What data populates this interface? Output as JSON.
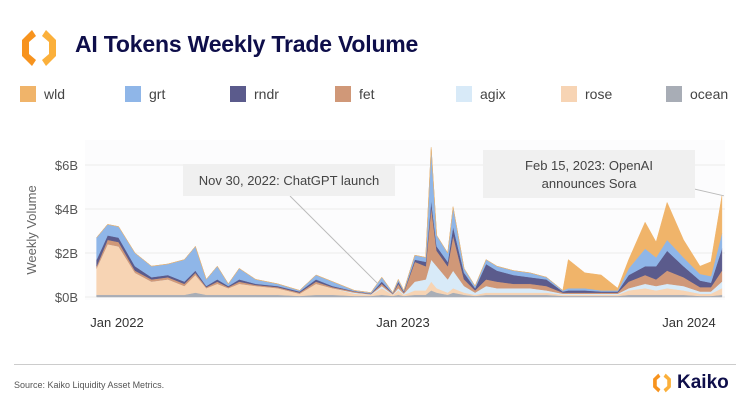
{
  "header": {
    "title": "AI Tokens Weekly Trade Volume",
    "logo_icon": "kaiko-logo-icon"
  },
  "footer": {
    "source": "Source: Kaiko Liquidity Asset Metrics.",
    "brand": "Kaiko"
  },
  "chart_data": {
    "type": "area",
    "stacked": true,
    "title": "AI Tokens Weekly Trade Volume",
    "ylabel": "Weekly Volume",
    "xlabel": "",
    "ylim": [
      0,
      7
    ],
    "yticks": [
      0,
      2,
      4,
      6
    ],
    "ytick_labels": [
      "$0B",
      "$2B",
      "$4B",
      "$6B"
    ],
    "xtick_dates": [
      "2022-01-01",
      "2023-01-01",
      "2024-01-01"
    ],
    "xtick_labels": [
      "Jan 2022",
      "Jan 2023",
      "Jan 2024"
    ],
    "grid": true,
    "legend_position": "top-left",
    "legend": [
      {
        "name": "wld",
        "color": "#f0b46a"
      },
      {
        "name": "grt",
        "color": "#8fb6e8"
      },
      {
        "name": "rndr",
        "color": "#5b5b8c"
      },
      {
        "name": "fet",
        "color": "#d09878"
      },
      {
        "name": "agix",
        "color": "#d8eaf8"
      },
      {
        "name": "rose",
        "color": "#f7d4b4"
      },
      {
        "name": "ocean",
        "color": "#a8adb6"
      }
    ],
    "stack_order_bottom_to_top": [
      "ocean",
      "rose",
      "agix",
      "fet",
      "rndr",
      "grt",
      "wld"
    ],
    "unit": "USD billions",
    "x": [
      "2021-12-06",
      "2021-12-20",
      "2022-01-03",
      "2022-01-24",
      "2022-02-14",
      "2022-03-07",
      "2022-03-28",
      "2022-04-11",
      "2022-04-25",
      "2022-05-09",
      "2022-05-23",
      "2022-06-06",
      "2022-06-27",
      "2022-07-25",
      "2022-08-22",
      "2022-09-12",
      "2022-10-03",
      "2022-10-31",
      "2022-11-21",
      "2022-12-05",
      "2022-12-19",
      "2022-12-26",
      "2023-01-02",
      "2023-01-16",
      "2023-01-30",
      "2023-02-06",
      "2023-02-13",
      "2023-02-27",
      "2023-03-06",
      "2023-03-20",
      "2023-04-03",
      "2023-04-17",
      "2023-05-01",
      "2023-05-22",
      "2023-06-12",
      "2023-07-03",
      "2023-07-24",
      "2023-07-31",
      "2023-08-21",
      "2023-09-11",
      "2023-10-02",
      "2023-10-16",
      "2023-11-06",
      "2023-11-20",
      "2023-12-04",
      "2023-12-25",
      "2024-01-15",
      "2024-01-29",
      "2024-02-12"
    ],
    "values_by_date": [
      [
        0.1,
        1.2,
        0,
        0.1,
        0.3,
        1.0,
        0
      ],
      [
        0.1,
        2.3,
        0,
        0.2,
        0.2,
        0.5,
        0
      ],
      [
        0.1,
        2.2,
        0,
        0.2,
        0.2,
        0.5,
        0
      ],
      [
        0.1,
        1.0,
        0,
        0.1,
        0.2,
        0.6,
        0
      ],
      [
        0.1,
        0.6,
        0,
        0.1,
        0.1,
        0.5,
        0
      ],
      [
        0.1,
        0.7,
        0,
        0.1,
        0.1,
        0.5,
        0
      ],
      [
        0.1,
        0.4,
        0,
        0.1,
        0.1,
        1.0,
        0
      ],
      [
        0.2,
        0.8,
        0,
        0.1,
        0.1,
        1.1,
        0
      ],
      [
        0.1,
        0.3,
        0,
        0.05,
        0.05,
        0.3,
        0
      ],
      [
        0.1,
        0.5,
        0,
        0.1,
        0.1,
        0.6,
        0
      ],
      [
        0.1,
        0.3,
        0,
        0.05,
        0.05,
        0.1,
        0
      ],
      [
        0.1,
        0.5,
        0,
        0.1,
        0.1,
        0.5,
        0
      ],
      [
        0.1,
        0.4,
        0,
        0.05,
        0.05,
        0.2,
        0
      ],
      [
        0.1,
        0.3,
        0,
        0.05,
        0.05,
        0.1,
        0
      ],
      [
        0.05,
        0.1,
        0,
        0.05,
        0.05,
        0.05,
        0
      ],
      [
        0.1,
        0.5,
        0,
        0.1,
        0.1,
        0.2,
        0
      ],
      [
        0.1,
        0.3,
        0,
        0.05,
        0.05,
        0.2,
        0
      ],
      [
        0.05,
        0.1,
        0.05,
        0.05,
        0.02,
        0.03,
        0
      ],
      [
        0.05,
        0.05,
        0.02,
        0.02,
        0.02,
        0.04,
        0
      ],
      [
        0.1,
        0.3,
        0.1,
        0.1,
        0.1,
        0.2,
        0
      ],
      [
        0.05,
        0.05,
        0.02,
        0.03,
        0.02,
        0.03,
        0
      ],
      [
        0.1,
        0.2,
        0.1,
        0.2,
        0.1,
        0.1,
        0
      ],
      [
        0.05,
        0.05,
        0.05,
        0.05,
        0.05,
        0.05,
        0
      ],
      [
        0.1,
        0.2,
        0.4,
        0.9,
        0.1,
        0.2,
        0
      ],
      [
        0.1,
        0.2,
        0.5,
        0.6,
        0.2,
        0.2,
        0
      ],
      [
        0.3,
        0.4,
        1.0,
        2.4,
        0.3,
        2.4,
        0
      ],
      [
        0.2,
        0.2,
        1.0,
        0.7,
        0.2,
        0.5,
        0
      ],
      [
        0.1,
        0.1,
        0.6,
        0.6,
        0.2,
        0.4,
        0
      ],
      [
        0.2,
        0.2,
        0.8,
        1.6,
        0.4,
        0.9,
        0
      ],
      [
        0.1,
        0.1,
        0.3,
        0.3,
        0.3,
        0.2,
        0
      ],
      [
        0.05,
        0.05,
        0.1,
        0.1,
        0.1,
        0.1,
        0
      ],
      [
        0.1,
        0.1,
        0.3,
        0.3,
        0.7,
        0.2,
        0
      ],
      [
        0.1,
        0.1,
        0.2,
        0.3,
        0.5,
        0.2,
        0
      ],
      [
        0.1,
        0.1,
        0.2,
        0.2,
        0.4,
        0.2,
        0
      ],
      [
        0.1,
        0.1,
        0.2,
        0.2,
        0.3,
        0.2,
        0
      ],
      [
        0.1,
        0.1,
        0.1,
        0.2,
        0.3,
        0.1,
        0
      ],
      [
        0.05,
        0.05,
        0.05,
        0.05,
        0.05,
        0.05,
        0
      ],
      [
        0.05,
        0.05,
        0.05,
        0.05,
        0.1,
        0.1,
        1.3
      ],
      [
        0.05,
        0.05,
        0.05,
        0.05,
        0.1,
        0.1,
        0.7
      ],
      [
        0.05,
        0.05,
        0.05,
        0.05,
        0.05,
        0.05,
        0.7
      ],
      [
        0.05,
        0.05,
        0.05,
        0.05,
        0.05,
        0.05,
        0.1
      ],
      [
        0.1,
        0.2,
        0.1,
        0.3,
        0.3,
        0.3,
        0.4
      ],
      [
        0.1,
        0.3,
        0.2,
        0.4,
        0.4,
        0.8,
        1.2
      ],
      [
        0.1,
        0.2,
        0.2,
        0.3,
        0.6,
        0.4,
        0.7
      ],
      [
        0.1,
        0.3,
        0.2,
        0.6,
        0.9,
        0.5,
        1.7
      ],
      [
        0.1,
        0.2,
        0.2,
        0.4,
        0.5,
        0.4,
        0.8
      ],
      [
        0.05,
        0.1,
        0.1,
        0.2,
        0.3,
        0.3,
        0.35
      ],
      [
        0.05,
        0.1,
        0.1,
        0.2,
        0.2,
        0.3,
        0.65
      ],
      [
        0.1,
        0.3,
        0.3,
        0.5,
        1.0,
        0.7,
        1.7
      ]
    ],
    "annotations": [
      {
        "text": "Nov 30, 2022: ChatGPT launch",
        "date": "2022-11-30",
        "value": 0.6
      },
      {
        "text_lines": [
          "Feb 15, 2023: OpenAI",
          "announces Sora"
        ],
        "date": "2024-02-12",
        "value": 4.6
      }
    ]
  }
}
